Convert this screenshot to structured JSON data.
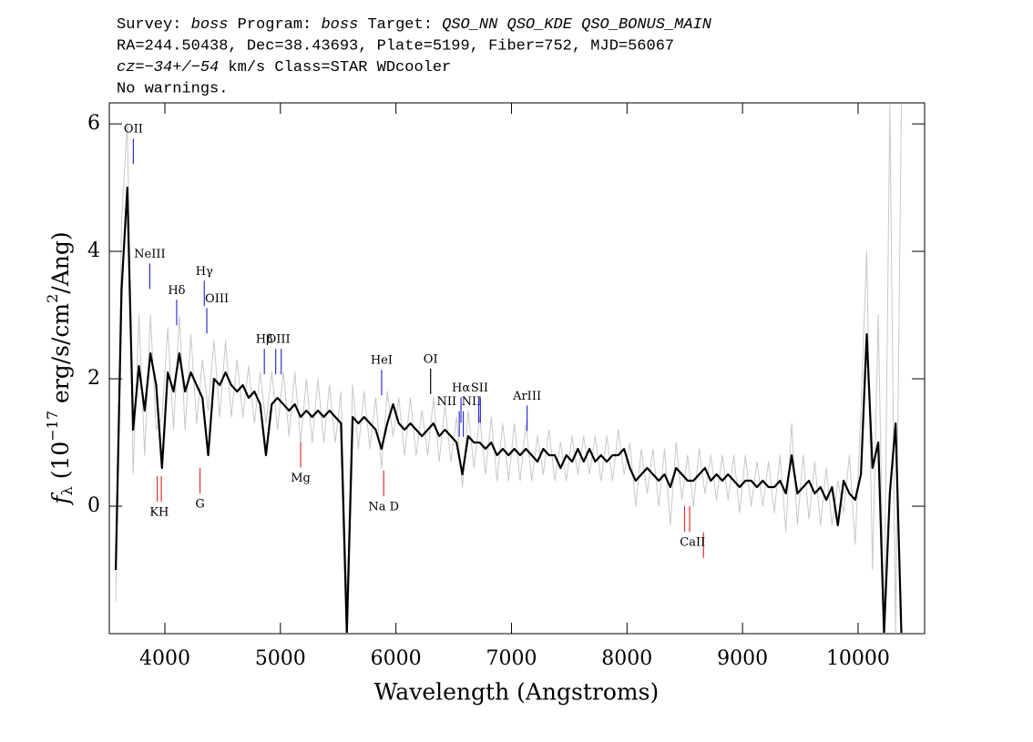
{
  "chart_data": {
    "type": "line",
    "header": [
      [
        {
          "text": "Survey: "
        },
        {
          "text": "boss",
          "italic": true
        },
        {
          "text": " Program: "
        },
        {
          "text": "boss",
          "italic": true
        },
        {
          "text": " Target: "
        },
        {
          "text": "QSO_NN QSO_KDE QSO_BONUS_MAIN",
          "italic": true
        }
      ],
      [
        {
          "text": "RA=244.50438, Dec=38.43693, Plate=5199, Fiber=752, MJD=56067"
        }
      ],
      [
        {
          "text": "cz=−34+/−54",
          "italic": true
        },
        {
          "text": " km/s Class=STAR WDcooler"
        }
      ],
      [
        {
          "text": "No warnings."
        }
      ]
    ],
    "x_label": "Wavelength (Angstroms)",
    "y_label": [
      {
        "text": "f",
        "italic": true
      },
      {
        "text": "λ",
        "sub": true
      },
      {
        "text": " (10"
      },
      {
        "text": "−17",
        "sup": true
      },
      {
        "text": " erg/s/cm"
      },
      {
        "text": "2",
        "sup": true
      },
      {
        "text": "/Ang)"
      }
    ],
    "xlim": [
      3519,
      10576
    ],
    "ylim": [
      -2,
      6.33
    ],
    "xticks": [
      4000,
      5000,
      6000,
      7000,
      8000,
      9000,
      10000
    ],
    "yticks": [
      0,
      2,
      4,
      6
    ],
    "x": [
      3575,
      3625,
      3675,
      3725,
      3775,
      3825,
      3875,
      3925,
      3975,
      4025,
      4075,
      4125,
      4175,
      4225,
      4275,
      4325,
      4375,
      4425,
      4475,
      4525,
      4575,
      4625,
      4675,
      4725,
      4775,
      4825,
      4875,
      4925,
      4975,
      5025,
      5075,
      5125,
      5175,
      5225,
      5275,
      5325,
      5375,
      5425,
      5475,
      5525,
      5575,
      5625,
      5675,
      5725,
      5775,
      5825,
      5875,
      5925,
      5975,
      6025,
      6075,
      6125,
      6175,
      6225,
      6275,
      6325,
      6375,
      6425,
      6475,
      6525,
      6575,
      6625,
      6675,
      6725,
      6775,
      6825,
      6875,
      6925,
      6975,
      7025,
      7075,
      7125,
      7175,
      7225,
      7275,
      7325,
      7375,
      7425,
      7475,
      7525,
      7575,
      7625,
      7675,
      7725,
      7775,
      7825,
      7875,
      7925,
      7975,
      8025,
      8075,
      8125,
      8175,
      8225,
      8275,
      8325,
      8375,
      8425,
      8475,
      8525,
      8575,
      8625,
      8675,
      8725,
      8775,
      8825,
      8875,
      8925,
      8975,
      9025,
      9075,
      9125,
      9175,
      9225,
      9275,
      9325,
      9375,
      9425,
      9475,
      9525,
      9575,
      9625,
      9675,
      9725,
      9775,
      9825,
      9875,
      9925,
      9975,
      10025,
      10075,
      10125,
      10175,
      10225,
      10275,
      10325,
      10375
    ],
    "series": [
      {
        "color": "#c8c8c8",
        "width": 1,
        "values": [
          -1.5,
          4.5,
          6.0,
          0.5,
          3.0,
          0.8,
          3.0,
          1.2,
          1.4,
          2.8,
          1.2,
          3.0,
          1.2,
          2.7,
          1.3,
          2.3,
          1.5,
          2.6,
          1.4,
          2.6,
          1.4,
          2.3,
          1.4,
          2.2,
          1.3,
          2.1,
          1.3,
          2.1,
          1.2,
          2.1,
          1.1,
          2.1,
          1.0,
          2.0,
          1.0,
          2.0,
          1.0,
          1.9,
          1.0,
          1.8,
          -1.5,
          1.9,
          0.9,
          1.8,
          0.9,
          1.7,
          0.6,
          1.8,
          1.1,
          1.7,
          0.8,
          1.7,
          0.8,
          1.5,
          0.8,
          1.7,
          0.7,
          1.6,
          0.7,
          1.4,
          0.3,
          1.5,
          0.6,
          1.4,
          0.5,
          1.4,
          0.4,
          1.3,
          0.4,
          1.3,
          0.4,
          1.3,
          0.4,
          1.1,
          0.5,
          1.2,
          0.4,
          1.0,
          0.4,
          1.1,
          0.5,
          1.1,
          0.5,
          1.1,
          0.4,
          1.1,
          0.4,
          1.2,
          0.5,
          1.0,
          0.0,
          0.9,
          0.2,
          0.9,
          0.0,
          0.9,
          -0.3,
          1.0,
          0.1,
          0.8,
          0.0,
          0.9,
          0.2,
          0.8,
          0.1,
          0.8,
          0.1,
          0.8,
          -0.1,
          0.8,
          0.0,
          0.7,
          0.0,
          0.7,
          -0.1,
          0.8,
          -0.4,
          1.3,
          -0.3,
          0.8,
          -0.2,
          0.7,
          -0.3,
          0.6,
          -0.3,
          0.4,
          -0.1,
          0.8,
          -0.6,
          1.5,
          4.0,
          -1.0,
          3.0,
          -2.0,
          6.3,
          -2.0,
          6.3
        ]
      },
      {
        "color": "#000000",
        "width": 2.2,
        "values": [
          -1.0,
          3.4,
          5.0,
          1.2,
          2.2,
          1.5,
          2.4,
          1.9,
          0.6,
          2.1,
          1.8,
          2.4,
          1.8,
          2.1,
          1.9,
          1.7,
          0.8,
          2.0,
          1.9,
          2.1,
          1.9,
          1.8,
          1.9,
          1.7,
          1.8,
          1.6,
          0.8,
          1.6,
          1.7,
          1.6,
          1.5,
          1.6,
          1.4,
          1.5,
          1.4,
          1.5,
          1.4,
          1.5,
          1.4,
          1.3,
          -2.0,
          1.4,
          1.3,
          1.4,
          1.3,
          1.2,
          0.9,
          1.3,
          1.6,
          1.3,
          1.2,
          1.3,
          1.2,
          1.1,
          1.2,
          1.3,
          1.1,
          1.2,
          1.1,
          1.0,
          0.5,
          1.1,
          1.0,
          1.0,
          0.9,
          1.0,
          0.8,
          0.9,
          0.8,
          0.9,
          0.8,
          0.9,
          0.8,
          0.7,
          0.9,
          0.8,
          0.8,
          0.6,
          0.8,
          0.7,
          0.9,
          0.7,
          0.9,
          0.7,
          0.8,
          0.7,
          0.8,
          0.8,
          0.9,
          0.6,
          0.4,
          0.5,
          0.6,
          0.5,
          0.4,
          0.5,
          0.3,
          0.6,
          0.5,
          0.4,
          0.4,
          0.5,
          0.6,
          0.4,
          0.5,
          0.4,
          0.5,
          0.4,
          0.3,
          0.4,
          0.4,
          0.3,
          0.4,
          0.3,
          0.3,
          0.4,
          0.2,
          0.8,
          0.2,
          0.3,
          0.4,
          0.2,
          0.3,
          0.1,
          0.3,
          -0.3,
          0.4,
          0.2,
          0.1,
          0.5,
          2.7,
          0.6,
          1.0,
          -2.0,
          0.2,
          1.3,
          -2.0
        ]
      }
    ],
    "line_labels": [
      {
        "label": "OII",
        "wavelengths": [
          3727
        ],
        "tops": [
          5.77
        ],
        "color": "#3030d0",
        "side": "above"
      },
      {
        "label": "NeIII",
        "wavelengths": [
          3869
        ],
        "tops": [
          3.81
        ],
        "color": "#3030d0",
        "side": "above"
      },
      {
        "label": "Hδ",
        "wavelengths": [
          4102
        ],
        "tops": [
          3.24
        ],
        "color": "#3030d0",
        "side": "above"
      },
      {
        "label": "Hγ",
        "wavelengths": [
          4341
        ],
        "tops": [
          3.54
        ],
        "color": "#3030d0",
        "side": "above"
      },
      {
        "label": "OIII",
        "wavelengths": [
          4363
        ],
        "tops": [
          3.11
        ],
        "color": "#3030d0",
        "side": "right"
      },
      {
        "label": "Hβ",
        "wavelengths": [
          4861
        ],
        "tops": [
          2.47
        ],
        "color": "#3030d0",
        "side": "above"
      },
      {
        "label": "OIII",
        "wavelengths": [
          4959,
          5007
        ],
        "tops": [
          2.47,
          2.47
        ],
        "color": "#3030d0",
        "side": "above"
      },
      {
        "label": "HeI",
        "wavelengths": [
          5876
        ],
        "tops": [
          2.14
        ],
        "color": "#3030d0",
        "side": "above"
      },
      {
        "label": "OI",
        "wavelengths": [
          6300
        ],
        "tops": [
          2.16
        ],
        "color": "#000000",
        "side": "above"
      },
      {
        "label": "NII",
        "wavelengths": [
          6548
        ],
        "tops": [
          1.49
        ],
        "color": "#3030d0",
        "side": "left"
      },
      {
        "label": "Hα",
        "wavelengths": [
          6563
        ],
        "tops": [
          1.71
        ],
        "color": "#3030d0",
        "side": "above"
      },
      {
        "label": "NII",
        "wavelengths": [
          6583
        ],
        "tops": [
          1.49
        ],
        "color": "#3030d0",
        "side": "right"
      },
      {
        "label": "SII",
        "wavelengths": [
          6716,
          6731
        ],
        "tops": [
          1.71,
          1.71
        ],
        "color": "#3030d0",
        "side": "above"
      },
      {
        "label": "ArIII",
        "wavelengths": [
          7135
        ],
        "tops": [
          1.58
        ],
        "color": "#3030d0",
        "side": "above"
      },
      {
        "label": "KH",
        "wavelengths": [
          3934,
          3969
        ],
        "tops": [
          0.47,
          0.47
        ],
        "color": "#e03030",
        "side": "below"
      },
      {
        "label": "G",
        "wavelengths": [
          4304
        ],
        "tops": [
          0.6
        ],
        "color": "#e03030",
        "side": "below"
      },
      {
        "label": "Mg",
        "wavelengths": [
          5175
        ],
        "tops": [
          1.01
        ],
        "color": "#e03030",
        "side": "below"
      },
      {
        "label": "Na D",
        "wavelengths": [
          5894
        ],
        "tops": [
          0.56
        ],
        "color": "#e03030",
        "side": "below"
      },
      {
        "label": "CaII",
        "wavelengths": [
          8498,
          8542,
          8662
        ],
        "tops": [
          0.0,
          0.0,
          -0.41
        ],
        "color": "#e03030",
        "side": "below"
      }
    ]
  }
}
